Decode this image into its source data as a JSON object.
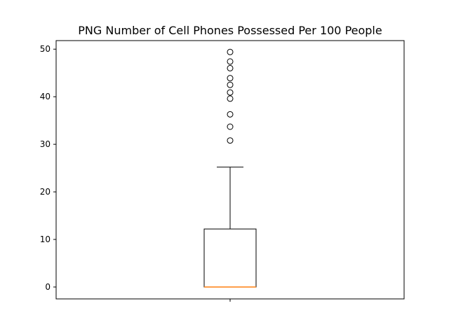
{
  "chart_data": {
    "type": "box",
    "title": "PNG Number of Cell Phones Possessed Per 100 People",
    "xlabel": "",
    "ylabel": "",
    "ylim": [
      -2.5,
      51.8
    ],
    "yticks": [
      0,
      10,
      20,
      30,
      40,
      50
    ],
    "x_tick_count": 1,
    "grid": false,
    "box": {
      "whisker_low": 0,
      "q1": 0,
      "median": 0,
      "q3": 12.2,
      "whisker_high": 25.2,
      "outliers": [
        30.8,
        33.7,
        36.3,
        39.6,
        40.9,
        42.5,
        43.9,
        46.0,
        47.4,
        49.4
      ]
    },
    "colors": {
      "box": "#000000",
      "median": "#ff7f0e",
      "outlier_edge": "#000000"
    }
  }
}
